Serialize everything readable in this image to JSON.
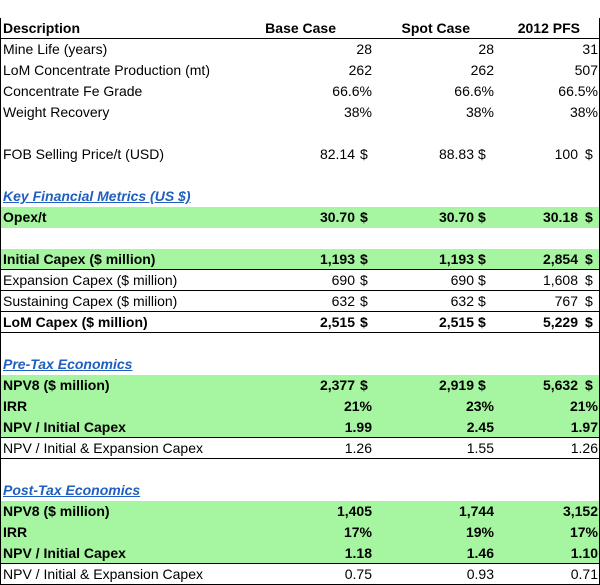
{
  "header": {
    "description": "Description",
    "col1": "Base Case",
    "col2": "Spot Case",
    "col3": "2012 PFS"
  },
  "rows": [
    {
      "label": "Mine Life (years)",
      "v": [
        "28",
        "28",
        "31"
      ],
      "d": [
        "",
        "",
        ""
      ]
    },
    {
      "label": "LoM Concentrate Production (mt)",
      "v": [
        "262",
        "262",
        "507"
      ],
      "d": [
        "",
        "",
        ""
      ]
    },
    {
      "label": "Concentrate Fe Grade",
      "v": [
        "66.6%",
        "66.6%",
        "66.5%"
      ],
      "d": [
        "",
        "",
        ""
      ]
    },
    {
      "label": "Weight Recovery",
      "v": [
        "38%",
        "38%",
        "38%"
      ],
      "d": [
        "",
        "",
        ""
      ]
    },
    {
      "label": "FOB Selling Price/t (USD)",
      "v": [
        "82.14",
        "88.83",
        "100"
      ],
      "d": [
        "$",
        "$",
        "$"
      ]
    },
    {
      "label": "Key Financial Metrics (US $)"
    },
    {
      "label": "Opex/t",
      "v": [
        "30.70",
        "30.70",
        "30.18"
      ],
      "d": [
        "$",
        "$",
        "$"
      ]
    },
    {
      "label": "Initial Capex ($ million)",
      "v": [
        "1,193",
        "1,193",
        "2,854"
      ],
      "d": [
        "$",
        "$",
        "$"
      ]
    },
    {
      "label": "Expansion Capex ($ million)",
      "v": [
        "690",
        "690",
        "1,608"
      ],
      "d": [
        "$",
        "$",
        "$"
      ]
    },
    {
      "label": "Sustaining Capex ($ million)",
      "v": [
        "632",
        "632",
        "767"
      ],
      "d": [
        "$",
        "$",
        "$"
      ]
    },
    {
      "label": "LoM Capex ($ million)",
      "v": [
        "2,515",
        "2,515",
        "5,229"
      ],
      "d": [
        "$",
        "$",
        "$"
      ]
    },
    {
      "label": "Pre-Tax Economics"
    },
    {
      "label": "NPV8 ($ million)",
      "v": [
        "2,377",
        "2,919",
        "5,632"
      ],
      "d": [
        "$",
        "$",
        "$"
      ]
    },
    {
      "label": "IRR",
      "v": [
        "21%",
        "23%",
        "21%"
      ],
      "d": [
        "",
        "",
        ""
      ]
    },
    {
      "label": "NPV / Initial Capex",
      "v": [
        "1.99",
        "2.45",
        "1.97"
      ],
      "d": [
        "",
        "",
        ""
      ]
    },
    {
      "label": "NPV / Initial & Expansion Capex",
      "v": [
        "1.26",
        "1.55",
        "1.26"
      ],
      "d": [
        "",
        "",
        ""
      ]
    },
    {
      "label": "Post-Tax Economics"
    },
    {
      "label": "NPV8 ($ million)",
      "v": [
        "1,405",
        "1,744",
        "3,152"
      ],
      "d": [
        "",
        "",
        ""
      ]
    },
    {
      "label": "IRR",
      "v": [
        "17%",
        "19%",
        "17%"
      ],
      "d": [
        "",
        "",
        ""
      ]
    },
    {
      "label": "NPV / Initial Capex",
      "v": [
        "1.18",
        "1.46",
        "1.10"
      ],
      "d": [
        "",
        "",
        ""
      ]
    },
    {
      "label": "NPV / Initial & Expansion Capex",
      "v": [
        "0.75",
        "0.93",
        "0.71"
      ],
      "d": [
        "",
        "",
        ""
      ]
    }
  ],
  "colors": {
    "highlight": "#a6f5a0",
    "section_heading": "#1f5fbf"
  }
}
